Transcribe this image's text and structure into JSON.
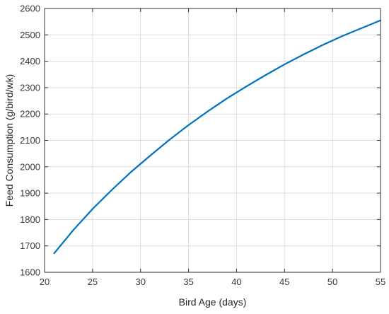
{
  "chart_data": {
    "type": "line",
    "title": "",
    "xlabel": "Bird Age (days)",
    "ylabel": "Feed Consumption (g/bird/wk)",
    "xlim": [
      20,
      55
    ],
    "ylim": [
      1600,
      2600
    ],
    "xticks": [
      20,
      25,
      30,
      35,
      40,
      45,
      50,
      55
    ],
    "yticks": [
      1600,
      1700,
      1800,
      1900,
      2000,
      2100,
      2200,
      2300,
      2400,
      2500,
      2600
    ],
    "grid": true,
    "legend": "none",
    "series": [
      {
        "color": "#0072bd",
        "x": [
          21,
          23,
          25,
          27,
          29,
          31,
          33,
          35,
          37,
          39,
          41,
          43,
          45,
          47,
          49,
          51,
          53,
          55
        ],
        "y": [
          1672,
          1760,
          1840,
          1912,
          1980,
          2042,
          2102,
          2158,
          2210,
          2259,
          2304,
          2347,
          2388,
          2426,
          2462,
          2495,
          2525,
          2555
        ]
      }
    ]
  }
}
